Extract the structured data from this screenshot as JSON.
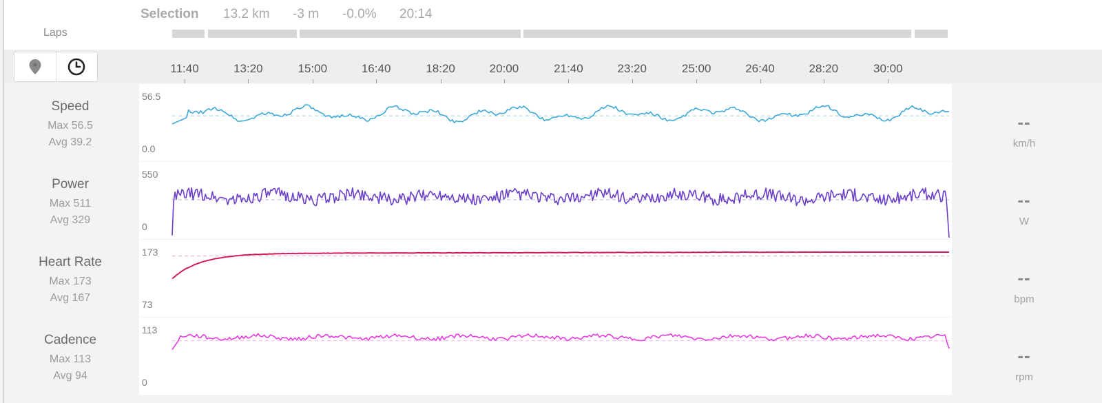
{
  "selection": {
    "label": "Selection",
    "distance": "13.2 km",
    "elevation": "-3 m",
    "grade": "-0.0%",
    "duration": "20:14"
  },
  "laps": {
    "label": "Laps",
    "segments": [
      {
        "start": 0.0,
        "end": 0.042
      },
      {
        "start": 0.046,
        "end": 0.161
      },
      {
        "start": 0.164,
        "end": 0.449
      },
      {
        "start": 0.453,
        "end": 0.953
      },
      {
        "start": 0.957,
        "end": 1.0
      }
    ]
  },
  "toolbar": {
    "map_icon": "map-pin-icon",
    "time_icon": "clock-icon"
  },
  "timeline": {
    "ticks": [
      "11:40",
      "13:20",
      "15:00",
      "16:40",
      "18:20",
      "20:00",
      "21:40",
      "23:20",
      "25:00",
      "26:40",
      "28:20",
      "30:00"
    ],
    "tick_fractions": [
      0.016,
      0.098,
      0.181,
      0.263,
      0.346,
      0.428,
      0.511,
      0.593,
      0.676,
      0.758,
      0.84,
      0.923
    ]
  },
  "metrics": [
    {
      "key": "speed",
      "name": "Speed",
      "max_label": "Max 56.5",
      "avg_label": "Avg 39.2",
      "ymax": "56.5",
      "ymin": "0.0",
      "current": "--",
      "unit": "km/h",
      "color": "#3ea9d8",
      "avg_color": "#b9dcee",
      "range": [
        0,
        56.5
      ],
      "avg": 39.2,
      "style": "speed"
    },
    {
      "key": "power",
      "name": "Power",
      "max_label": "Max 511",
      "avg_label": "Avg 329",
      "ymax": "550",
      "ymin": "0",
      "current": "--",
      "unit": "W",
      "color": "#6a3fc9",
      "avg_color": "#c9c0df",
      "range": [
        0,
        550
      ],
      "avg": 329,
      "style": "power"
    },
    {
      "key": "heart_rate",
      "name": "Heart Rate",
      "max_label": "Max 173",
      "avg_label": "Avg 167",
      "ymax": "173",
      "ymin": "73",
      "current": "--",
      "unit": "bpm",
      "color": "#d21d57",
      "avg_color": "#f0b7c8",
      "range": [
        73,
        173
      ],
      "avg": 167,
      "style": "hr"
    },
    {
      "key": "cadence",
      "name": "Cadence",
      "max_label": "Max 113",
      "avg_label": "Avg 94",
      "ymax": "113",
      "ymin": "0",
      "current": "--",
      "unit": "rpm",
      "color": "#e63ce0",
      "avg_color": "#f3bdf0",
      "range": [
        0,
        113
      ],
      "avg": 94,
      "style": "cadence"
    }
  ]
}
